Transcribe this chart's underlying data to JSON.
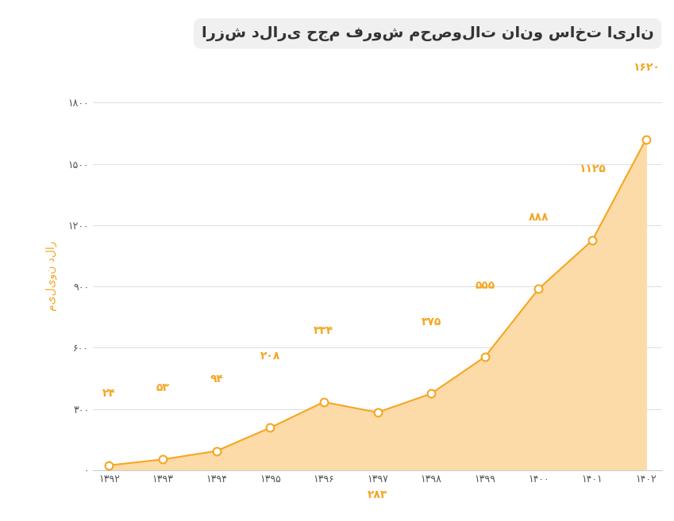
{
  "years": [
    "۱۳۹۲",
    "۱۳۹۳",
    "۱۳۹۴",
    "۱۳۹۵",
    "۱۳۹۶",
    "۱۳۹۷",
    "۱۳۹۸",
    "۱۳۹۹",
    "۱۴۰۰",
    "۱۴۰۱",
    "۱۴۰۲"
  ],
  "values": [
    24,
    53,
    94,
    208,
    334,
    283,
    375,
    555,
    888,
    1125,
    1620
  ],
  "labels": [
    "۲۴",
    "۵۳",
    "۹۴",
    "۲۰۸",
    "۳۳۴",
    "۲۸۳",
    "۳۷۵",
    "۵۵۵",
    "۸۸۸",
    "۱۱۲۵",
    "۱۶۲۰"
  ],
  "title": "ارزش دلاری حجم فروش محصولات نانو ساخت ایران",
  "ylabel": "میلیون دلار",
  "yticks": [
    0,
    300,
    600,
    900,
    1200,
    1500,
    1800
  ],
  "ytick_labels": [
    "۰",
    "۳۰۰",
    "۶۰۰",
    "۹۰۰",
    "۱۲۰۰",
    "۱۵۰۰",
    "۱۸۰۰"
  ],
  "line_color": "#F5A623",
  "fill_color": "#FDDBA8",
  "marker_color": "#FFFFFF",
  "marker_edge_color": "#F5A623",
  "label_color": "#F5A623",
  "bg_color": "#FFFFFF",
  "title_bg_color": "#F0F0F0",
  "grid_color": "#E0E0E0",
  "axis_color": "#CCCCCC",
  "ylim": [
    0,
    1900
  ],
  "title_fontsize": 14,
  "label_fontsize": 10,
  "ylabel_fontsize": 10,
  "ytick_fontsize": 9
}
